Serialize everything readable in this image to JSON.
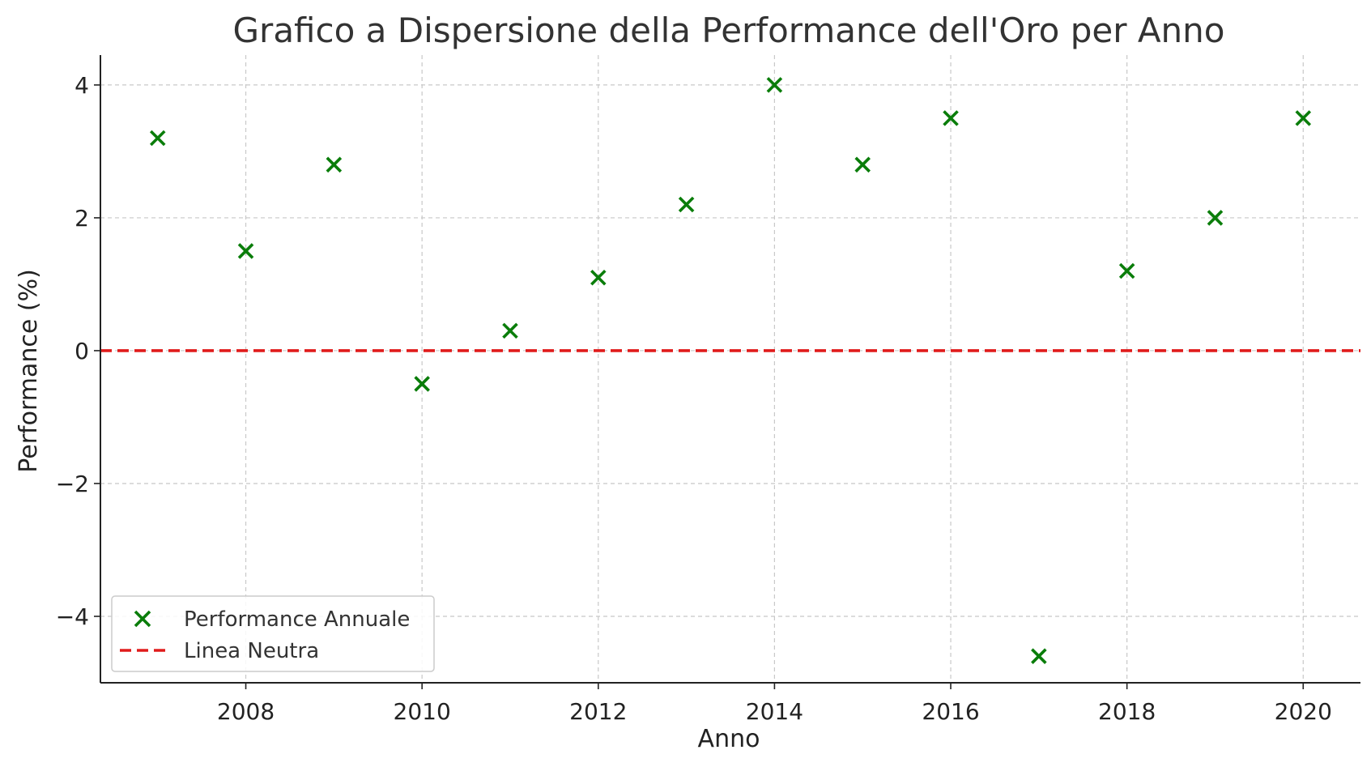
{
  "chart_data": {
    "type": "scatter",
    "title": "Grafico a Dispersione della Performance dell'Oro per Anno",
    "xlabel": "Anno",
    "ylabel": "Performance (%)",
    "xlim": [
      2006.35,
      2020.65
    ],
    "ylim": [
      -5.0,
      4.45
    ],
    "x_ticks": [
      2008,
      2010,
      2012,
      2014,
      2016,
      2018,
      2020
    ],
    "y_ticks": [
      -4,
      -2,
      0,
      2,
      4
    ],
    "y_tick_labels": [
      "−4",
      "−2",
      "0",
      "2",
      "4"
    ],
    "grid": true,
    "legend_position": "bottom-left",
    "series": [
      {
        "name": "Performance Annuale",
        "marker": "x",
        "color": "#0a7d0a",
        "points": [
          {
            "x": 2007,
            "y": 3.2
          },
          {
            "x": 2008,
            "y": 1.5
          },
          {
            "x": 2009,
            "y": 2.8
          },
          {
            "x": 2010,
            "y": -0.5
          },
          {
            "x": 2011,
            "y": 0.3
          },
          {
            "x": 2012,
            "y": 1.1
          },
          {
            "x": 2013,
            "y": 2.2
          },
          {
            "x": 2014,
            "y": 4.0
          },
          {
            "x": 2015,
            "y": 2.8
          },
          {
            "x": 2016,
            "y": 3.5
          },
          {
            "x": 2017,
            "y": -4.6
          },
          {
            "x": 2018,
            "y": 1.2
          },
          {
            "x": 2019,
            "y": 2.0
          },
          {
            "x": 2020,
            "y": 3.5
          }
        ]
      }
    ],
    "reference_lines": [
      {
        "name": "Linea Neutra",
        "y": 0,
        "style": "dashed",
        "color": "#e01b1b"
      }
    ]
  }
}
